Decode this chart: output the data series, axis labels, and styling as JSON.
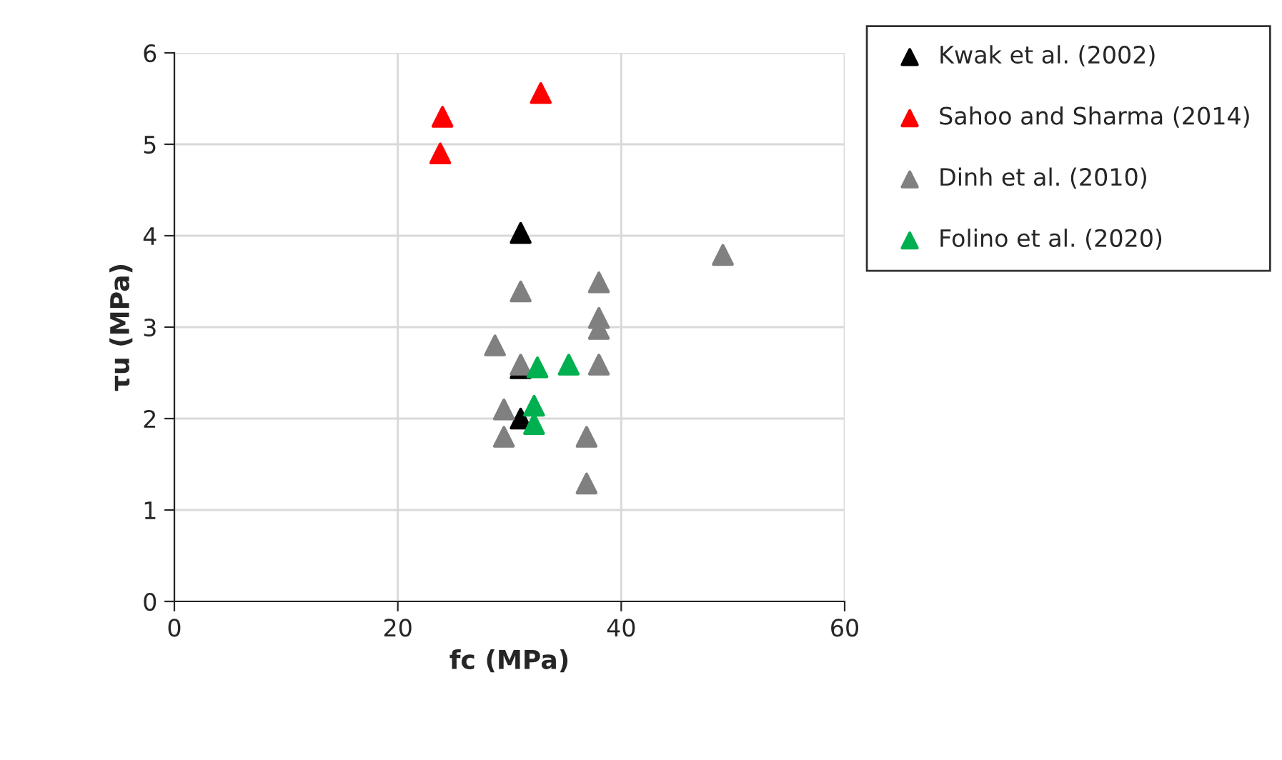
{
  "chart_data": {
    "type": "scatter",
    "xlabel": "fc (MPa)",
    "ylabel": "τu (MPa)",
    "xlim": [
      0,
      60
    ],
    "xticks": [
      0,
      20,
      40,
      60
    ],
    "ylim": [
      0,
      6
    ],
    "yticks": [
      0,
      1,
      2,
      3,
      4,
      5,
      6
    ],
    "grid": true,
    "legend": "top right",
    "marker": "triangle",
    "series": [
      {
        "name": "Kwak et al. (2002)",
        "color": "#000000",
        "x": [
          31.0,
          31.0,
          31.0
        ],
        "values": [
          4.03,
          2.55,
          2.0
        ]
      },
      {
        "name": "Sahoo and Sharma (2014)",
        "color": "#ff0000",
        "x": [
          24.0,
          23.8,
          32.8
        ],
        "values": [
          5.3,
          4.9,
          5.56
        ]
      },
      {
        "name": "Dinh et al. (2010)",
        "color": "#808080",
        "x": [
          49.1,
          38.0,
          38.0,
          38.0,
          31.0,
          28.7,
          31.0,
          38.0,
          29.5,
          29.5,
          36.9,
          36.9
        ],
        "values": [
          3.79,
          3.49,
          3.1,
          2.98,
          3.39,
          2.8,
          2.59,
          2.59,
          2.1,
          1.8,
          1.8,
          1.29
        ]
      },
      {
        "name": "Folino et al. (2020)",
        "color": "#00b050",
        "x": [
          32.5,
          35.3,
          32.2,
          32.2
        ],
        "values": [
          2.56,
          2.59,
          2.14,
          1.94
        ]
      }
    ]
  }
}
